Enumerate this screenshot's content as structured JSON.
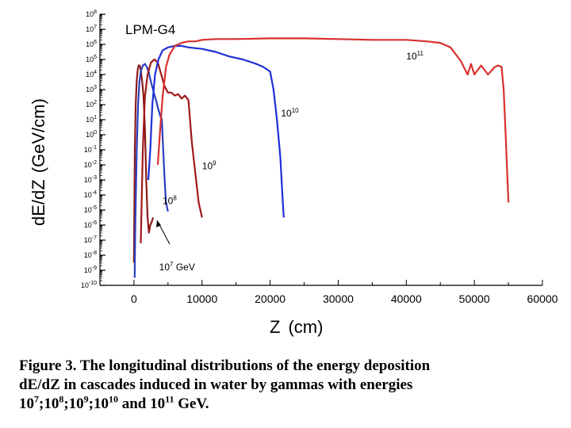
{
  "chart_data": {
    "type": "line",
    "title": "LPM-G4",
    "xlabel_main": "Z",
    "xlabel_unit": "(cm)",
    "ylabel_main": "dE/dZ",
    "ylabel_unit": "(GeV/cm)",
    "xlim": [
      -5000,
      60000
    ],
    "ylim_log10": [
      -10,
      8
    ],
    "y_scale": "log",
    "grid": false,
    "x_ticks": [
      "0",
      "10000",
      "20000",
      "30000",
      "40000",
      "50000",
      "60000"
    ],
    "y_tick_exponents": [
      "8",
      "7",
      "6",
      "5",
      "4",
      "3",
      "2",
      "1",
      "0",
      "-1",
      "-2",
      "-3",
      "-4",
      "-5",
      "-6",
      "-7",
      "-8",
      "-9",
      "-10"
    ],
    "series": [
      {
        "color": "#8b1a1a",
        "x": [
          0,
          40,
          120,
          250,
          400,
          550,
          700,
          850,
          1000,
          1200,
          1400,
          1600,
          1800,
          2000,
          2200,
          2400,
          2600,
          2800
        ],
        "log10_y": [
          -8.5,
          -5.5,
          -1.0,
          2.0,
          3.6,
          4.3,
          4.6,
          4.6,
          4.3,
          3.6,
          2.6,
          0.5,
          -3.0,
          -5.5,
          -6.5,
          -6.0,
          -5.8,
          -5.5
        ]
      },
      {
        "color": "#2b3fbf",
        "x": [
          100,
          200,
          400,
          600,
          800,
          1000,
          1300,
          1600,
          1900,
          2200,
          2500,
          2800,
          3100,
          3300,
          3500,
          3700,
          3900,
          4100,
          4300,
          4500,
          4700,
          5000
        ],
        "log10_y": [
          -9.5,
          -6.0,
          -1.0,
          2.0,
          3.5,
          4.2,
          4.6,
          4.7,
          4.5,
          4.1,
          3.5,
          3.0,
          2.5,
          2.2,
          1.8,
          1.5,
          1.2,
          1.0,
          -1.0,
          -3.0,
          -4.5,
          -5.1
        ]
      },
      {
        "color": "#a01818",
        "x": [
          1000,
          1100,
          1300,
          1600,
          2000,
          2500,
          3000,
          3500,
          4000,
          4500,
          5000,
          5500,
          6000,
          6500,
          7000,
          7500,
          8000,
          8500,
          9000,
          9500,
          10000
        ],
        "log10_y": [
          -7.2,
          -5.0,
          -1.0,
          2.5,
          4.0,
          4.8,
          5.0,
          4.8,
          4.0,
          3.2,
          2.8,
          2.8,
          2.6,
          2.7,
          2.4,
          2.6,
          2.3,
          -0.5,
          -2.5,
          -4.5,
          -5.5
        ]
      },
      {
        "color": "#1f2fd6",
        "x": [
          2100,
          2400,
          2700,
          3100,
          3600,
          4200,
          5000,
          6000,
          7000,
          8000,
          10000,
          12000,
          14000,
          16000,
          18000,
          19000,
          20000,
          20500,
          21000,
          21500,
          21800,
          22000
        ],
        "log10_y": [
          -3.0,
          -1.0,
          2.0,
          4.0,
          5.0,
          5.6,
          5.8,
          5.9,
          5.9,
          5.8,
          5.7,
          5.5,
          5.2,
          5.0,
          4.7,
          4.5,
          4.2,
          3.0,
          1.0,
          -1.5,
          -4.0,
          -5.5
        ]
      },
      {
        "color": "#d93030",
        "x": [
          3500,
          3800,
          4200,
          4700,
          5200,
          6000,
          7000,
          8000,
          9000,
          10000,
          12000,
          15000,
          20000,
          25000,
          30000,
          35000,
          40000,
          43000,
          45000,
          46500,
          48000,
          49000,
          49500,
          50000,
          51000,
          52000,
          53000,
          53500,
          54000,
          54300,
          54600,
          55000
        ],
        "log10_y": [
          -2.0,
          0.0,
          2.5,
          4.5,
          5.3,
          5.9,
          6.1,
          6.2,
          6.2,
          6.3,
          6.35,
          6.35,
          6.4,
          6.4,
          6.35,
          6.3,
          6.3,
          6.2,
          6.1,
          5.8,
          4.9,
          4.0,
          4.7,
          4.0,
          4.6,
          4.0,
          4.5,
          4.6,
          4.5,
          3.0,
          0.0,
          -4.5
        ]
      }
    ],
    "annotations": [
      {
        "base": "10",
        "exp": "7",
        "suffix": " GeV",
        "x": 3700,
        "log10_y": -9.0
      },
      {
        "base": "10",
        "exp": "8",
        "suffix": "",
        "x": 4200,
        "log10_y": -4.6
      },
      {
        "base": "10",
        "exp": "9",
        "suffix": "",
        "x": 10000,
        "log10_y": -2.3
      },
      {
        "base": "10",
        "exp": "10",
        "suffix": "",
        "x": 21600,
        "log10_y": 1.2
      },
      {
        "base": "10",
        "exp": "11",
        "suffix": "",
        "x": 40000,
        "log10_y": 5.0
      }
    ]
  },
  "caption": {
    "line1": "Figure 3.  The longitudinal distributions of the energy deposition",
    "line2": "dE/dZ in cascades induced in water by gammas with energies",
    "line3_parts": [
      {
        "t": "10",
        "sup": "7"
      },
      {
        "t": ";10",
        "sup": "8"
      },
      {
        "t": ";10",
        "sup": "9"
      },
      {
        "t": ";10",
        "sup": "10"
      },
      {
        "t": " and 10",
        "sup": "11"
      },
      {
        "t": " GeV.",
        "sup": ""
      }
    ]
  }
}
